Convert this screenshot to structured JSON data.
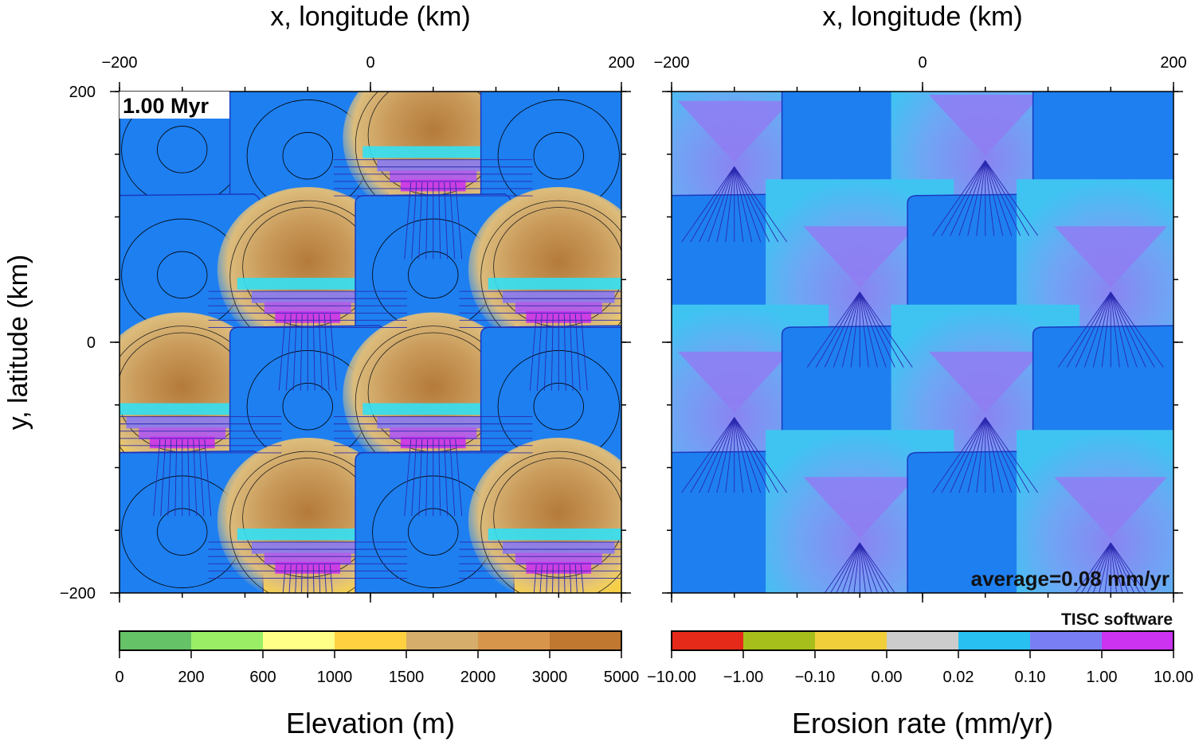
{
  "chart_data": [
    {
      "type": "heatmap",
      "panel": "left",
      "title": "x, longitude (km)",
      "xlabel": "x, longitude (km)",
      "ylabel": "y, latitude (km)",
      "xlim": [
        -200,
        200
      ],
      "ylim": [
        -200,
        200
      ],
      "x_ticks": [
        -200,
        0,
        200
      ],
      "y_ticks": [
        200,
        0,
        -200
      ],
      "x_tick_labels": [
        "−200",
        "0",
        "200"
      ],
      "y_tick_labels": [
        "200",
        "0",
        "−200"
      ],
      "annotation": "1.00 Myr",
      "colorbar": {
        "label": "Elevation (m)",
        "tick_labels": [
          "0",
          "200",
          "600",
          "1000",
          "1500",
          "2000",
          "3000",
          "5000"
        ],
        "colors": [
          "#66c266",
          "#99ee66",
          "#ffff88",
          "#ffd040",
          "#d6ad6a",
          "#d6954a",
          "#c07830"
        ]
      },
      "lake_color": "#1e7ff0",
      "basins": [
        {
          "kind": "lake",
          "x": -150,
          "y": 155
        },
        {
          "kind": "lake",
          "x": -50,
          "y": 150
        },
        {
          "kind": "mountain",
          "x": 50,
          "y": 160
        },
        {
          "kind": "lake",
          "x": 150,
          "y": 150
        },
        {
          "kind": "lake",
          "x": -150,
          "y": 55
        },
        {
          "kind": "mountain",
          "x": -50,
          "y": 55
        },
        {
          "kind": "lake",
          "x": 50,
          "y": 55
        },
        {
          "kind": "mountain",
          "x": 150,
          "y": 55
        },
        {
          "kind": "mountain",
          "x": -150,
          "y": -45
        },
        {
          "kind": "lake",
          "x": -50,
          "y": -50
        },
        {
          "kind": "mountain",
          "x": 50,
          "y": -45
        },
        {
          "kind": "lake",
          "x": 150,
          "y": -50
        },
        {
          "kind": "lake",
          "x": -150,
          "y": -150
        },
        {
          "kind": "mountain",
          "x": -50,
          "y": -145
        },
        {
          "kind": "lake",
          "x": 50,
          "y": -150
        },
        {
          "kind": "mountain",
          "x": 150,
          "y": -145
        }
      ]
    },
    {
      "type": "heatmap",
      "panel": "right",
      "title": "x, longitude (km)",
      "xlabel": "x, longitude (km)",
      "xlim": [
        -200,
        200
      ],
      "ylim": [
        -200,
        200
      ],
      "x_ticks": [
        -200,
        0,
        200
      ],
      "x_tick_labels": [
        "−200",
        "0",
        "200"
      ],
      "annotation": "average=0.08 mm/yr",
      "credit": "TISC software",
      "colorbar": {
        "label": "Erosion rate (mm/yr)",
        "tick_labels": [
          "−10.00",
          "−1.00",
          "−0.10",
          "0.00",
          "0.02",
          "0.10",
          "1.00",
          "10.00"
        ],
        "colors": [
          "#e62a1a",
          "#a6bf1a",
          "#f0cf3a",
          "#cccccc",
          "#28c0f0",
          "#7a7ef5",
          "#cc33f0"
        ]
      },
      "lake_color": "#1e7ff0",
      "basins": [
        {
          "kind": "eroding",
          "x": -150,
          "y": 155
        },
        {
          "kind": "lake",
          "x": -50,
          "y": 150
        },
        {
          "kind": "eroding",
          "x": 50,
          "y": 160
        },
        {
          "kind": "lake",
          "x": 150,
          "y": 150
        },
        {
          "kind": "lake",
          "x": -150,
          "y": 55
        },
        {
          "kind": "eroding",
          "x": -50,
          "y": 55
        },
        {
          "kind": "lake",
          "x": 50,
          "y": 55
        },
        {
          "kind": "eroding",
          "x": 150,
          "y": 55
        },
        {
          "kind": "eroding",
          "x": -150,
          "y": -45
        },
        {
          "kind": "lake",
          "x": -50,
          "y": -50
        },
        {
          "kind": "eroding",
          "x": 50,
          "y": -45
        },
        {
          "kind": "lake",
          "x": 150,
          "y": -50
        },
        {
          "kind": "lake",
          "x": -150,
          "y": -150
        },
        {
          "kind": "eroding",
          "x": -50,
          "y": -145
        },
        {
          "kind": "lake",
          "x": 50,
          "y": -150
        },
        {
          "kind": "eroding",
          "x": 150,
          "y": -145
        }
      ]
    }
  ]
}
